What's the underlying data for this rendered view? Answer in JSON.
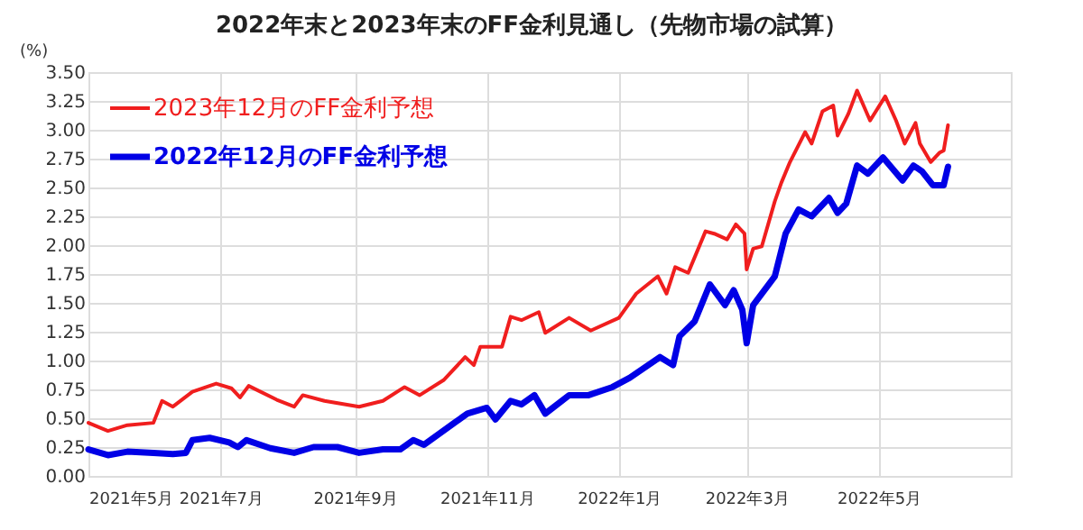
{
  "chart_data": {
    "type": "line",
    "title": "2022年末と2023年末のFF金利見通し（先物市場の試算）",
    "ylabel": "(%)",
    "xlim": [
      "2021-05-01",
      "2022-07-01"
    ],
    "xticks": [
      {
        "value": "2021-05-01",
        "label": "2021年5月"
      },
      {
        "value": "2021-07-01",
        "label": "2021年7月"
      },
      {
        "value": "2021-09-01",
        "label": "2021年9月"
      },
      {
        "value": "2021-11-01",
        "label": "2021年11月"
      },
      {
        "value": "2022-01-01",
        "label": "2022年1月"
      },
      {
        "value": "2022-03-01",
        "label": "2022年3月"
      },
      {
        "value": "2022-05-01",
        "label": "2022年5月"
      }
    ],
    "ylim": [
      0,
      3.5
    ],
    "yticks": [
      {
        "value": 0,
        "label": "0.00"
      },
      {
        "value": 0.25,
        "label": "0.25"
      },
      {
        "value": 0.5,
        "label": "0.50"
      },
      {
        "value": 0.75,
        "label": "0.75"
      },
      {
        "value": 1,
        "label": "1.00"
      },
      {
        "value": 1.25,
        "label": "1.25"
      },
      {
        "value": 1.5,
        "label": "1.50"
      },
      {
        "value": 1.75,
        "label": "1.75"
      },
      {
        "value": 2,
        "label": "2.00"
      },
      {
        "value": 2.25,
        "label": "2.25"
      },
      {
        "value": 2.5,
        "label": "2.50"
      },
      {
        "value": 2.75,
        "label": "2.75"
      },
      {
        "value": 3,
        "label": "3.00"
      },
      {
        "value": 3.25,
        "label": "3.25"
      },
      {
        "value": 3.5,
        "label": "3.50"
      }
    ],
    "grid": true,
    "legend": "top left",
    "marker": "none",
    "line_style": "solid",
    "series": [
      {
        "name": "2023年12月のFF金利予想",
        "color": "#f01e1e",
        "x": [
          "2021-05-01",
          "2021-05-10",
          "2021-05-19",
          "2021-05-31",
          "2021-06-04",
          "2021-06-09",
          "2021-06-18",
          "2021-06-29",
          "2021-07-06",
          "2021-07-10",
          "2021-07-14",
          "2021-07-27",
          "2021-08-04",
          "2021-08-08",
          "2021-08-18",
          "2021-09-03",
          "2021-09-14",
          "2021-09-24",
          "2021-10-01",
          "2021-10-12",
          "2021-10-22",
          "2021-10-26",
          "2021-10-29",
          "2021-11-08",
          "2021-11-12",
          "2021-11-17",
          "2021-11-25",
          "2021-11-28",
          "2021-12-09",
          "2021-12-19",
          "2022-01-01",
          "2022-01-09",
          "2022-01-19",
          "2022-01-23",
          "2022-01-27",
          "2022-02-02",
          "2022-02-10",
          "2022-02-14",
          "2022-02-20",
          "2022-02-24",
          "2022-02-28",
          "2022-03-01",
          "2022-03-04",
          "2022-03-08",
          "2022-03-14",
          "2022-03-17",
          "2022-03-21",
          "2022-03-28",
          "2022-03-31",
          "2022-04-05",
          "2022-04-10",
          "2022-04-12",
          "2022-04-17",
          "2022-04-21",
          "2022-04-27",
          "2022-05-04",
          "2022-05-09",
          "2022-05-13",
          "2022-05-18",
          "2022-05-20",
          "2022-05-25",
          "2022-05-29",
          "2022-05-31",
          "2022-06-02"
        ],
        "values": [
          0.46,
          0.39,
          0.44,
          0.46,
          0.65,
          0.6,
          0.73,
          0.8,
          0.76,
          0.68,
          0.78,
          0.66,
          0.6,
          0.7,
          0.65,
          0.6,
          0.65,
          0.77,
          0.7,
          0.83,
          1.03,
          0.96,
          1.12,
          1.12,
          1.38,
          1.35,
          1.42,
          1.24,
          1.37,
          1.26,
          1.37,
          1.58,
          1.73,
          1.58,
          1.81,
          1.76,
          2.12,
          2.1,
          2.05,
          2.18,
          2.1,
          1.79,
          1.97,
          1.99,
          2.38,
          2.54,
          2.72,
          2.98,
          2.88,
          3.16,
          3.21,
          2.95,
          3.14,
          3.34,
          3.08,
          3.29,
          3.08,
          2.88,
          3.06,
          2.88,
          2.72,
          2.8,
          2.82,
          3.04
        ]
      },
      {
        "name": "2022年12月のFF金利予想",
        "color": "#0000e6",
        "x": [
          "2021-05-01",
          "2021-05-10",
          "2021-05-19",
          "2021-05-31",
          "2021-06-09",
          "2021-06-15",
          "2021-06-18",
          "2021-06-26",
          "2021-07-05",
          "2021-07-09",
          "2021-07-13",
          "2021-07-24",
          "2021-08-04",
          "2021-08-13",
          "2021-08-24",
          "2021-09-03",
          "2021-09-14",
          "2021-09-22",
          "2021-09-28",
          "2021-10-03",
          "2021-10-17",
          "2021-10-23",
          "2021-11-01",
          "2021-11-05",
          "2021-11-12",
          "2021-11-17",
          "2021-11-23",
          "2021-11-28",
          "2021-12-09",
          "2021-12-18",
          "2021-12-29",
          "2022-01-06",
          "2022-01-20",
          "2022-01-26",
          "2022-01-29",
          "2022-02-05",
          "2022-02-12",
          "2022-02-19",
          "2022-02-23",
          "2022-02-27",
          "2022-03-01",
          "2022-03-04",
          "2022-03-14",
          "2022-03-19",
          "2022-03-25",
          "2022-03-31",
          "2022-04-08",
          "2022-04-12",
          "2022-04-16",
          "2022-04-21",
          "2022-04-26",
          "2022-05-03",
          "2022-05-12",
          "2022-05-17",
          "2022-05-21",
          "2022-05-26",
          "2022-05-31",
          "2022-06-02"
        ],
        "values": [
          0.23,
          0.18,
          0.21,
          0.2,
          0.19,
          0.2,
          0.31,
          0.33,
          0.29,
          0.25,
          0.31,
          0.24,
          0.2,
          0.25,
          0.25,
          0.2,
          0.23,
          0.23,
          0.31,
          0.27,
          0.46,
          0.54,
          0.59,
          0.49,
          0.65,
          0.62,
          0.7,
          0.54,
          0.7,
          0.7,
          0.77,
          0.85,
          1.03,
          0.96,
          1.21,
          1.34,
          1.66,
          1.48,
          1.61,
          1.44,
          1.15,
          1.48,
          1.73,
          2.1,
          2.31,
          2.25,
          2.41,
          2.28,
          2.36,
          2.69,
          2.62,
          2.76,
          2.56,
          2.69,
          2.64,
          2.52,
          2.52,
          2.68
        ]
      }
    ]
  }
}
